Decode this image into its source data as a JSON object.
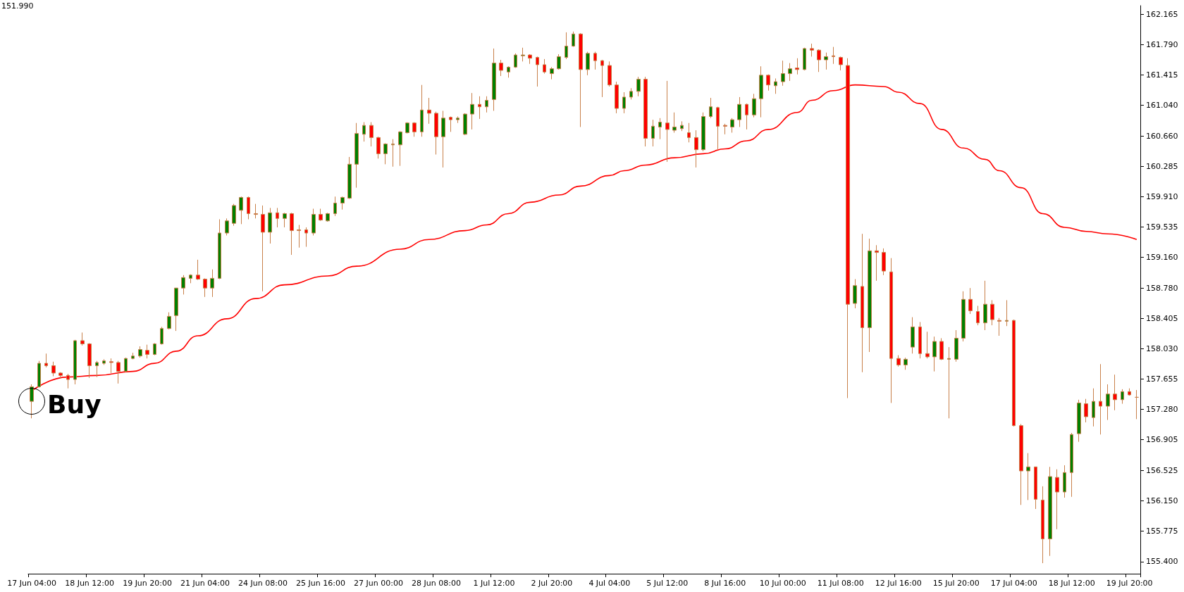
{
  "chart_data": {
    "type": "candlestick",
    "categories": [
      "17 Jun 04:00",
      null,
      null,
      null,
      null,
      null,
      null,
      null,
      "18 Jun 12:00",
      null,
      null,
      null,
      null,
      null,
      null,
      null,
      "19 Jun 20:00",
      null,
      null,
      null,
      null,
      null,
      null,
      null,
      "21 Jun 04:00",
      null,
      null,
      null,
      null,
      null,
      null,
      null,
      "24 Jun 08:00",
      null,
      null,
      null,
      null,
      null,
      null,
      null,
      "25 Jun 16:00",
      null,
      null,
      null,
      null,
      null,
      null,
      null,
      "27 Jun 00:00",
      null,
      null,
      null,
      null,
      null,
      null,
      null,
      "28 Jun 08:00",
      null,
      null,
      null,
      null,
      null,
      null,
      null,
      "1 Jul 12:00",
      null,
      null,
      null,
      null,
      null,
      null,
      null,
      "2 Jul 20:00",
      null,
      null,
      null,
      null,
      null,
      null,
      null,
      "4 Jul 04:00",
      null,
      null,
      null,
      null,
      null,
      null,
      null,
      "5 Jul 12:00",
      null,
      null,
      null,
      null,
      null,
      null,
      null,
      "8 Jul 16:00",
      null,
      null,
      null,
      null,
      null,
      null,
      null,
      "10 Jul 00:00",
      null,
      null,
      null,
      null,
      null,
      null,
      null,
      "11 Jul 08:00",
      null,
      null,
      null,
      null,
      null,
      null,
      null,
      "12 Jul 16:00",
      null,
      null,
      null,
      null,
      null,
      null,
      null,
      "15 Jul 20:00",
      null,
      null,
      null,
      null,
      null,
      null,
      null,
      "17 Jul 04:00",
      null,
      null,
      null,
      null,
      null,
      null,
      null,
      "18 Jul 12:00",
      null,
      null,
      null,
      null,
      null,
      null,
      null,
      "19 Jul 20:00",
      null
    ],
    "ohlc": [
      [
        157.38,
        157.59,
        157.17,
        157.56
      ],
      [
        157.56,
        157.88,
        157.55,
        157.85
      ],
      [
        157.85,
        157.97,
        157.8,
        157.82
      ],
      [
        157.82,
        157.87,
        157.69,
        157.73
      ],
      [
        157.73,
        157.74,
        157.66,
        157.7
      ],
      [
        157.7,
        157.72,
        157.54,
        157.65
      ],
      [
        157.65,
        158.14,
        157.59,
        158.13
      ],
      [
        158.13,
        158.23,
        158.07,
        158.09
      ],
      [
        158.09,
        158.1,
        157.67,
        157.82
      ],
      [
        157.82,
        157.88,
        157.68,
        157.86
      ],
      [
        157.85,
        157.9,
        157.83,
        157.88
      ],
      [
        157.87,
        157.91,
        157.73,
        157.86
      ],
      [
        157.86,
        157.88,
        157.6,
        157.75
      ],
      [
        157.75,
        157.92,
        157.74,
        157.91
      ],
      [
        157.91,
        157.98,
        157.9,
        157.94
      ],
      [
        157.94,
        158.06,
        157.92,
        158.02
      ],
      [
        158.01,
        158.08,
        157.91,
        157.96
      ],
      [
        157.96,
        158.1,
        157.95,
        158.09
      ],
      [
        158.09,
        158.3,
        158.08,
        158.28
      ],
      [
        158.28,
        158.48,
        158.27,
        158.43
      ],
      [
        158.44,
        158.78,
        158.25,
        158.78
      ],
      [
        158.78,
        158.94,
        158.7,
        158.91
      ],
      [
        158.9,
        158.95,
        158.84,
        158.94
      ],
      [
        158.94,
        159.13,
        158.88,
        158.89
      ],
      [
        158.89,
        158.9,
        158.67,
        158.78
      ],
      [
        158.78,
        159.01,
        158.67,
        158.9
      ],
      [
        158.9,
        159.63,
        158.89,
        159.46
      ],
      [
        159.46,
        159.64,
        159.43,
        159.61
      ],
      [
        159.58,
        159.82,
        159.55,
        159.8
      ],
      [
        159.74,
        159.91,
        159.57,
        159.9
      ],
      [
        159.9,
        159.91,
        159.63,
        159.7
      ],
      [
        159.7,
        159.82,
        159.64,
        159.69
      ],
      [
        159.69,
        159.8,
        158.74,
        159.47
      ],
      [
        159.47,
        159.77,
        159.33,
        159.71
      ],
      [
        159.71,
        159.77,
        159.53,
        159.64
      ],
      [
        159.64,
        159.71,
        159.53,
        159.7
      ],
      [
        159.7,
        159.71,
        159.19,
        159.49
      ],
      [
        159.5,
        159.56,
        159.28,
        159.49
      ],
      [
        159.5,
        159.53,
        159.29,
        159.46
      ],
      [
        159.46,
        159.76,
        159.43,
        159.69
      ],
      [
        159.69,
        159.76,
        159.61,
        159.62
      ],
      [
        159.61,
        159.71,
        159.6,
        159.7
      ],
      [
        159.7,
        159.91,
        159.67,
        159.83
      ],
      [
        159.83,
        159.91,
        159.75,
        159.9
      ],
      [
        159.89,
        160.4,
        159.88,
        160.31
      ],
      [
        160.31,
        160.82,
        160.02,
        160.69
      ],
      [
        160.68,
        160.83,
        160.59,
        160.79
      ],
      [
        160.79,
        160.83,
        160.53,
        160.64
      ],
      [
        160.64,
        160.65,
        160.38,
        160.44
      ],
      [
        160.44,
        160.57,
        160.31,
        160.56
      ],
      [
        160.55,
        160.62,
        160.28,
        160.56
      ],
      [
        160.55,
        160.72,
        160.29,
        160.71
      ],
      [
        160.7,
        160.83,
        160.69,
        160.82
      ],
      [
        160.82,
        160.83,
        160.65,
        160.71
      ],
      [
        160.71,
        161.29,
        160.65,
        160.98
      ],
      [
        160.98,
        161.13,
        160.81,
        160.94
      ],
      [
        160.94,
        160.96,
        160.43,
        160.65
      ],
      [
        160.65,
        160.97,
        160.27,
        160.88
      ],
      [
        160.89,
        160.9,
        160.71,
        160.86
      ],
      [
        160.86,
        160.9,
        160.82,
        160.88
      ],
      [
        160.68,
        160.94,
        160.67,
        160.93
      ],
      [
        160.93,
        161.19,
        160.74,
        161.05
      ],
      [
        161.05,
        161.15,
        160.87,
        161.02
      ],
      [
        161.02,
        161.15,
        160.95,
        161.1
      ],
      [
        161.11,
        161.74,
        160.97,
        161.56
      ],
      [
        161.56,
        161.6,
        161.4,
        161.47
      ],
      [
        161.45,
        161.52,
        161.38,
        161.51
      ],
      [
        161.51,
        161.68,
        161.5,
        161.66
      ],
      [
        161.65,
        161.75,
        161.58,
        161.66
      ],
      [
        161.66,
        161.67,
        161.55,
        161.62
      ],
      [
        161.63,
        161.64,
        161.27,
        161.54
      ],
      [
        161.54,
        161.61,
        161.43,
        161.45
      ],
      [
        161.43,
        161.51,
        161.36,
        161.49
      ],
      [
        161.49,
        161.67,
        161.48,
        161.64
      ],
      [
        161.63,
        161.94,
        161.61,
        161.77
      ],
      [
        161.77,
        161.95,
        161.76,
        161.92
      ],
      [
        161.92,
        161.93,
        160.77,
        161.48
      ],
      [
        161.48,
        161.7,
        161.41,
        161.68
      ],
      [
        161.68,
        161.7,
        161.48,
        161.59
      ],
      [
        161.59,
        161.6,
        161.14,
        161.53
      ],
      [
        161.53,
        161.58,
        161.27,
        161.29
      ],
      [
        161.29,
        161.33,
        160.94,
        161.0
      ],
      [
        161.0,
        161.2,
        160.94,
        161.14
      ],
      [
        161.14,
        161.25,
        161.11,
        161.21
      ],
      [
        161.21,
        161.39,
        161.15,
        161.36
      ],
      [
        161.36,
        161.39,
        160.53,
        160.63
      ],
      [
        160.63,
        160.86,
        160.53,
        160.78
      ],
      [
        160.77,
        160.88,
        160.62,
        160.83
      ],
      [
        160.82,
        161.34,
        160.34,
        160.74
      ],
      [
        160.73,
        160.95,
        160.7,
        160.77
      ],
      [
        160.75,
        160.84,
        160.72,
        160.79
      ],
      [
        160.7,
        160.82,
        160.58,
        160.64
      ],
      [
        160.64,
        160.73,
        160.27,
        160.49
      ],
      [
        160.49,
        160.95,
        160.47,
        160.9
      ],
      [
        160.9,
        161.13,
        160.88,
        161.02
      ],
      [
        161.01,
        161.02,
        160.49,
        160.78
      ],
      [
        160.79,
        160.81,
        160.68,
        160.78
      ],
      [
        160.77,
        160.88,
        160.7,
        160.86
      ],
      [
        160.86,
        161.14,
        160.77,
        161.05
      ],
      [
        161.05,
        161.06,
        160.74,
        160.92
      ],
      [
        160.92,
        161.18,
        160.89,
        161.12
      ],
      [
        161.12,
        161.52,
        160.89,
        161.41
      ],
      [
        161.41,
        161.42,
        161.22,
        161.29
      ],
      [
        161.28,
        161.37,
        161.18,
        161.33
      ],
      [
        161.33,
        161.59,
        161.28,
        161.43
      ],
      [
        161.43,
        161.56,
        161.34,
        161.49
      ],
      [
        161.5,
        161.62,
        161.42,
        161.48
      ],
      [
        161.48,
        161.75,
        161.47,
        161.74
      ],
      [
        161.74,
        161.8,
        161.64,
        161.72
      ],
      [
        161.72,
        161.73,
        161.45,
        161.6
      ],
      [
        161.6,
        161.69,
        161.48,
        161.64
      ],
      [
        161.65,
        161.76,
        161.55,
        161.64
      ],
      [
        161.63,
        161.64,
        161.47,
        161.54
      ],
      [
        161.53,
        161.62,
        157.42,
        158.58
      ],
      [
        158.59,
        158.89,
        158.53,
        158.81
      ],
      [
        158.8,
        159.45,
        157.74,
        158.29
      ],
      [
        158.29,
        159.39,
        157.99,
        159.24
      ],
      [
        159.24,
        159.31,
        158.87,
        159.22
      ],
      [
        159.22,
        159.27,
        158.94,
        158.99
      ],
      [
        158.98,
        159.15,
        157.36,
        157.91
      ],
      [
        157.91,
        157.95,
        157.81,
        157.83
      ],
      [
        157.83,
        157.92,
        157.77,
        157.9
      ],
      [
        158.05,
        158.42,
        157.97,
        158.3
      ],
      [
        158.3,
        158.36,
        157.91,
        157.97
      ],
      [
        157.97,
        158.24,
        157.91,
        157.93
      ],
      [
        157.93,
        158.18,
        157.75,
        158.12
      ],
      [
        158.12,
        158.16,
        157.89,
        157.9
      ],
      [
        157.9,
        158.05,
        157.17,
        157.91
      ],
      [
        157.9,
        158.26,
        157.87,
        158.16
      ],
      [
        158.16,
        158.74,
        158.12,
        158.64
      ],
      [
        158.64,
        158.78,
        158.46,
        158.5
      ],
      [
        158.49,
        158.56,
        158.32,
        158.35
      ],
      [
        158.35,
        158.87,
        158.26,
        158.58
      ],
      [
        158.58,
        158.63,
        158.32,
        158.39
      ],
      [
        158.38,
        158.41,
        158.19,
        158.37
      ],
      [
        158.37,
        158.63,
        158.31,
        158.38
      ],
      [
        158.38,
        158.39,
        157.07,
        157.08
      ],
      [
        157.08,
        157.1,
        156.1,
        156.52
      ],
      [
        156.52,
        156.74,
        156.16,
        156.57
      ],
      [
        156.57,
        156.57,
        156.05,
        156.17
      ],
      [
        156.16,
        156.33,
        155.38,
        155.68
      ],
      [
        155.68,
        156.57,
        155.47,
        156.45
      ],
      [
        156.44,
        156.54,
        155.8,
        156.26
      ],
      [
        156.26,
        156.59,
        156.19,
        156.5
      ],
      [
        156.5,
        156.99,
        156.2,
        156.97
      ],
      [
        156.98,
        157.4,
        156.88,
        157.36
      ],
      [
        157.35,
        157.41,
        157.12,
        157.19
      ],
      [
        157.18,
        157.54,
        157.07,
        157.38
      ],
      [
        157.38,
        157.84,
        156.97,
        157.32
      ],
      [
        157.32,
        157.59,
        157.15,
        157.47
      ],
      [
        157.47,
        157.71,
        157.27,
        157.4
      ],
      [
        157.4,
        157.53,
        157.35,
        157.5
      ],
      [
        157.5,
        157.54,
        157.45,
        157.46
      ],
      [
        157.43,
        157.52,
        157.16,
        157.43
      ]
    ],
    "series": [
      {
        "type": "line",
        "color": "#ff0000",
        "values": [
          157.51,
          null,
          null,
          null,
          null,
          157.68,
          null,
          null,
          null,
          157.7,
          null,
          null,
          null,
          null,
          157.75,
          null,
          null,
          157.85,
          null,
          null,
          158.0,
          null,
          null,
          158.19,
          null,
          null,
          null,
          158.4,
          null,
          null,
          null,
          158.65,
          null,
          null,
          null,
          158.82,
          null,
          null,
          null,
          null,
          null,
          158.93,
          null,
          null,
          null,
          159.05,
          null,
          null,
          null,
          null,
          null,
          159.26,
          null,
          null,
          null,
          159.38,
          null,
          null,
          null,
          null,
          159.49,
          null,
          null,
          159.56,
          null,
          null,
          159.7,
          null,
          null,
          159.84,
          null,
          null,
          null,
          159.93,
          null,
          null,
          160.04,
          null,
          null,
          null,
          160.17,
          null,
          160.23,
          null,
          null,
          160.3,
          null,
          null,
          null,
          160.39,
          null,
          null,
          null,
          160.44,
          null,
          null,
          160.5,
          null,
          null,
          160.6,
          null,
          null,
          160.74,
          null,
          null,
          null,
          160.95,
          null,
          161.1,
          null,
          null,
          161.22,
          null,
          null,
          161.29,
          null,
          null,
          null,
          161.27,
          null,
          161.2,
          null,
          null,
          161.06,
          null,
          null,
          160.74,
          null,
          null,
          160.51,
          null,
          null,
          160.37,
          null,
          160.23,
          null,
          null,
          160.02,
          null,
          null,
          159.7,
          null,
          null,
          159.53,
          null,
          null,
          159.48,
          null,
          null,
          159.45,
          null,
          null,
          null,
          159.38
        ]
      }
    ],
    "ylim": [
      155.25,
      162.27
    ],
    "yticks": [
      162.165,
      {
        "value": 161.79,
        "label": "161.790"
      },
      161.415,
      {
        "value": 161.04,
        "label": "161.040"
      },
      {
        "value": 160.66,
        "label": "160.660"
      },
      160.285,
      {
        "value": 159.91,
        "label": "159.910"
      },
      159.535,
      {
        "value": 159.16,
        "label": "159.160"
      },
      {
        "value": 158.78,
        "label": "158.780"
      },
      158.405,
      {
        "value": 158.03,
        "label": "158.030"
      },
      157.655,
      {
        "value": 157.28,
        "label": "157.280"
      },
      156.905,
      156.525,
      {
        "value": 156.15,
        "label": "156.150"
      },
      155.775,
      {
        "value": 155.4,
        "label": "155.400"
      }
    ],
    "annotations": [
      "151.990",
      "Buy"
    ]
  }
}
